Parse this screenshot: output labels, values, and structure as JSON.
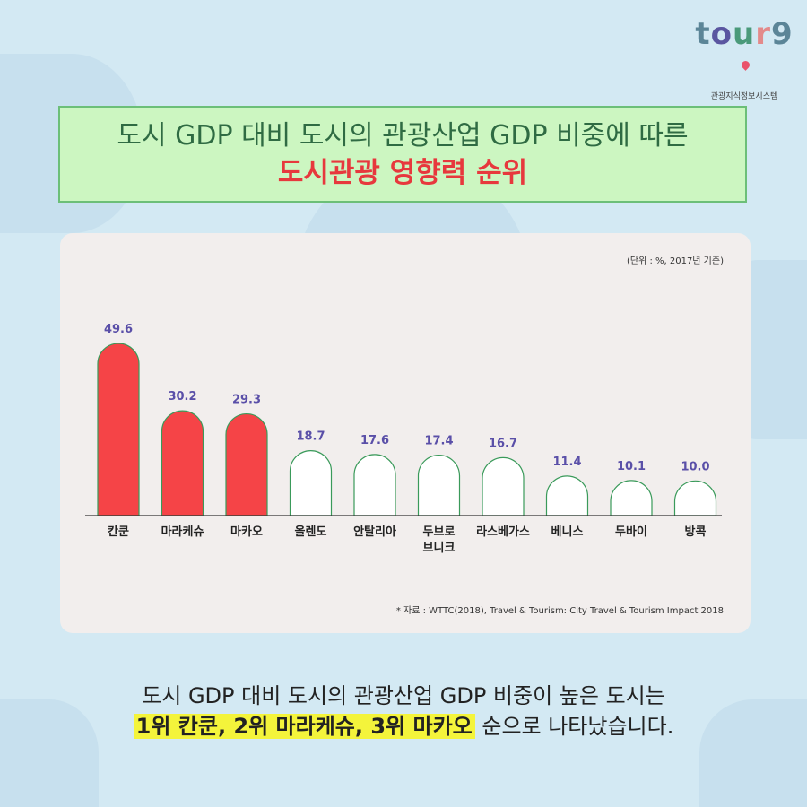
{
  "logo": {
    "word": "tour9",
    "subtitle": "관광지식정보시스템"
  },
  "title": {
    "line1": "도시 GDP 대비 도시의 관광산업 GDP 비중에 따른",
    "line2": "도시관광 영향력 순위"
  },
  "chart_data": {
    "type": "bar",
    "unit_note": "(단위 : %, 2017년 기준)",
    "categories": [
      "칸쿤",
      "마라케슈",
      "마카오",
      "올렌도",
      "안탈리아",
      "두브로\n브니크",
      "라스베가스",
      "베니스",
      "두바이",
      "방콕"
    ],
    "values": [
      49.6,
      30.2,
      29.3,
      18.7,
      17.6,
      17.4,
      16.7,
      11.4,
      10.1,
      10.0
    ],
    "value_labels": [
      "49.6",
      "30.2",
      "29.3",
      "18.7",
      "17.6",
      "17.4",
      "16.7",
      "11.4",
      "10.1",
      "10.0"
    ],
    "highlight_top": 3,
    "colors": {
      "highlight": "#f54447",
      "normal": "#ffffff",
      "outline": "#3a9a5a",
      "value_label": "#5a4fa8"
    },
    "ylim": [
      0,
      50
    ],
    "source": "* 자료 : WTTC(2018), Travel & Tourism: City Travel & Tourism Impact 2018"
  },
  "summary": {
    "line1": "도시 GDP 대비 도시의 관광산업 GDP 비중이 높은 도시는",
    "highlight": "1위 칸쿤, 2위 마라케슈, 3위 마카오",
    "rest": " 순으로 나타났습니다."
  }
}
